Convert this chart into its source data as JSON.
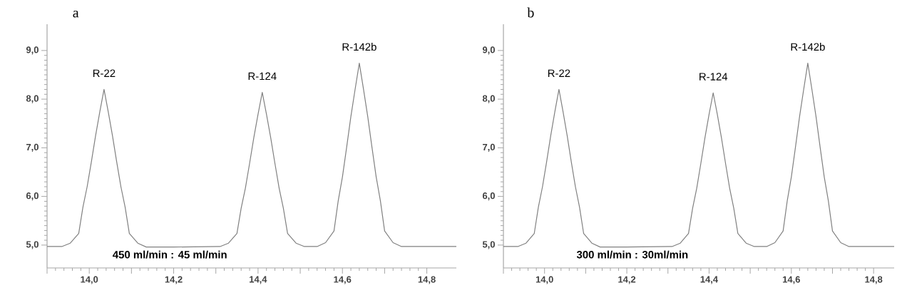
{
  "chart_data": [
    {
      "type": "line",
      "title": "a",
      "xlim": [
        13.9,
        14.87
      ],
      "ylim": [
        4.53,
        9.54
      ],
      "xticks": [
        {
          "value": 13.9,
          "label": null
        },
        {
          "value": 14.0,
          "label": "14,0"
        },
        {
          "value": 14.1,
          "label": null
        },
        {
          "value": 14.2,
          "label": "14,2"
        },
        {
          "value": 14.3,
          "label": null
        },
        {
          "value": 14.4,
          "label": "14,4"
        },
        {
          "value": 14.5,
          "label": null
        },
        {
          "value": 14.6,
          "label": "14,6"
        },
        {
          "value": 14.7,
          "label": null
        },
        {
          "value": 14.8,
          "label": "14,8"
        }
      ],
      "yticks": [
        {
          "value": 5.0,
          "label": "5,0"
        },
        {
          "value": 6.0,
          "label": "6,0"
        },
        {
          "value": 7.0,
          "label": "7,0"
        },
        {
          "value": 8.0,
          "label": "8,0"
        },
        {
          "value": 9.0,
          "label": "9,0"
        }
      ],
      "series": [
        {
          "color": "#808080",
          "x": [
            13.9,
            13.935,
            13.955,
            13.975,
            13.985,
            13.995,
            14.005,
            14.015,
            14.025,
            14.035,
            14.045,
            14.055,
            14.065,
            14.075,
            14.085,
            14.095,
            14.115,
            14.135,
            14.2,
            14.31,
            14.33,
            14.35,
            14.36,
            14.37,
            14.38,
            14.39,
            14.4,
            14.41,
            14.42,
            14.43,
            14.44,
            14.45,
            14.46,
            14.47,
            14.49,
            14.51,
            14.54,
            14.56,
            14.58,
            14.59,
            14.6,
            14.61,
            14.62,
            14.63,
            14.64,
            14.65,
            14.66,
            14.67,
            14.68,
            14.69,
            14.7,
            14.72,
            14.74,
            14.87
          ],
          "values": [
            4.97,
            4.97,
            5.04,
            5.24,
            5.78,
            6.2,
            6.71,
            7.25,
            7.74,
            8.2,
            7.74,
            7.25,
            6.71,
            6.2,
            5.78,
            5.24,
            5.04,
            4.96,
            4.96,
            4.97,
            5.04,
            5.24,
            5.76,
            6.17,
            6.68,
            7.21,
            7.69,
            8.14,
            7.69,
            7.21,
            6.68,
            6.17,
            5.76,
            5.24,
            5.04,
            4.97,
            4.97,
            5.05,
            5.29,
            5.91,
            6.4,
            7.01,
            7.64,
            8.2,
            8.74,
            8.2,
            7.64,
            7.01,
            6.4,
            5.91,
            5.29,
            5.05,
            4.97,
            4.97
          ]
        }
      ],
      "annotations": [
        {
          "text": "R-22",
          "x": 14.035,
          "y": 8.2
        },
        {
          "text": "R-124",
          "x": 14.41,
          "y": 8.14
        },
        {
          "text": "R-142b",
          "x": 14.64,
          "y": 8.74
        },
        "450 ml/min : 45 ml/min"
      ]
    },
    {
      "type": "line",
      "title": "b",
      "xlim": [
        13.9,
        14.85
      ],
      "ylim": [
        4.53,
        9.54
      ],
      "xticks": [
        {
          "value": 13.9,
          "label": null
        },
        {
          "value": 14.0,
          "label": "14,0"
        },
        {
          "value": 14.1,
          "label": null
        },
        {
          "value": 14.2,
          "label": "14,2"
        },
        {
          "value": 14.3,
          "label": null
        },
        {
          "value": 14.4,
          "label": "14,4"
        },
        {
          "value": 14.5,
          "label": null
        },
        {
          "value": 14.6,
          "label": "14,6"
        },
        {
          "value": 14.7,
          "label": null
        },
        {
          "value": 14.8,
          "label": "14,8"
        }
      ],
      "yticks": [
        {
          "value": 5.0,
          "label": "5,0"
        },
        {
          "value": 6.0,
          "label": "6,0"
        },
        {
          "value": 7.0,
          "label": "7,0"
        },
        {
          "value": 8.0,
          "label": "8,0"
        },
        {
          "value": 9.0,
          "label": "9,0"
        }
      ],
      "series": [
        {
          "color": "#808080",
          "x": [
            13.9,
            13.935,
            13.955,
            13.975,
            13.985,
            13.995,
            14.005,
            14.015,
            14.025,
            14.035,
            14.045,
            14.055,
            14.065,
            14.075,
            14.085,
            14.095,
            14.115,
            14.135,
            14.2,
            14.31,
            14.33,
            14.35,
            14.36,
            14.37,
            14.38,
            14.39,
            14.4,
            14.41,
            14.42,
            14.43,
            14.44,
            14.45,
            14.46,
            14.47,
            14.49,
            14.51,
            14.54,
            14.56,
            14.58,
            14.59,
            14.6,
            14.61,
            14.62,
            14.63,
            14.64,
            14.65,
            14.66,
            14.67,
            14.68,
            14.69,
            14.7,
            14.72,
            14.74,
            14.85
          ],
          "values": [
            4.97,
            4.97,
            5.04,
            5.24,
            5.78,
            6.2,
            6.71,
            7.25,
            7.74,
            8.2,
            7.74,
            7.25,
            6.71,
            6.2,
            5.78,
            5.24,
            5.04,
            4.96,
            4.96,
            4.97,
            5.04,
            5.24,
            5.76,
            6.17,
            6.68,
            7.21,
            7.69,
            8.13,
            7.69,
            7.21,
            6.68,
            6.17,
            5.76,
            5.24,
            5.04,
            4.97,
            4.97,
            5.05,
            5.29,
            5.91,
            6.4,
            7.01,
            7.64,
            8.2,
            8.74,
            8.2,
            7.64,
            7.01,
            6.4,
            5.91,
            5.29,
            5.05,
            4.97,
            4.97
          ]
        }
      ],
      "annotations": [
        {
          "text": "R-22",
          "x": 14.035,
          "y": 8.2
        },
        {
          "text": "R-124",
          "x": 14.41,
          "y": 8.13
        },
        {
          "text": "R-142b",
          "x": 14.64,
          "y": 8.74
        },
        "300 ml/min : 30ml/min"
      ]
    }
  ]
}
